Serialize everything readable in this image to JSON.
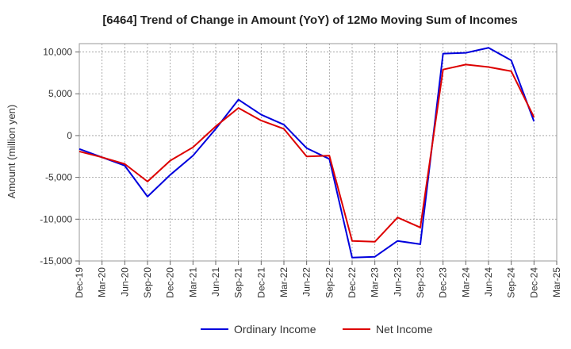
{
  "chart_data": {
    "type": "line",
    "title": "[6464]  Trend of Change in Amount (YoY) of 12Mo Moving Sum of Incomes",
    "xlabel": "",
    "ylabel": "Amount (million yen)",
    "ylim": [
      -15000,
      11000
    ],
    "yticks": [
      10000,
      5000,
      0,
      -5000,
      -10000,
      -15000
    ],
    "ytick_labels": [
      "10,000",
      "5,000",
      "0",
      "-5,000",
      "-10,000",
      "-15,000"
    ],
    "x": [
      "Dec-19",
      "Mar-20",
      "Jun-20",
      "Sep-20",
      "Dec-20",
      "Mar-21",
      "Jun-21",
      "Sep-21",
      "Dec-21",
      "Mar-22",
      "Jun-22",
      "Sep-22",
      "Dec-22",
      "Mar-23",
      "Jun-23",
      "Sep-23",
      "Dec-23",
      "Mar-24",
      "Jun-24",
      "Sep-24",
      "Dec-24",
      "Mar-25"
    ],
    "grid": true,
    "legend_position": "bottom",
    "series": [
      {
        "name": "Ordinary Income",
        "color": "#0000dd",
        "values": [
          -1600,
          -2600,
          -3600,
          -7300,
          -4700,
          -2400,
          800,
          4300,
          2500,
          1300,
          -1500,
          -2800,
          -14600,
          -14500,
          -12600,
          -13000,
          9800,
          9900,
          10500,
          9000,
          1700,
          null
        ]
      },
      {
        "name": "Net Income",
        "color": "#dd0000",
        "values": [
          -1900,
          -2600,
          -3400,
          -5500,
          -3000,
          -1400,
          1100,
          3300,
          1800,
          800,
          -2500,
          -2400,
          -12600,
          -12700,
          -9800,
          -11000,
          7900,
          8500,
          8200,
          7700,
          2200,
          null
        ]
      }
    ]
  }
}
